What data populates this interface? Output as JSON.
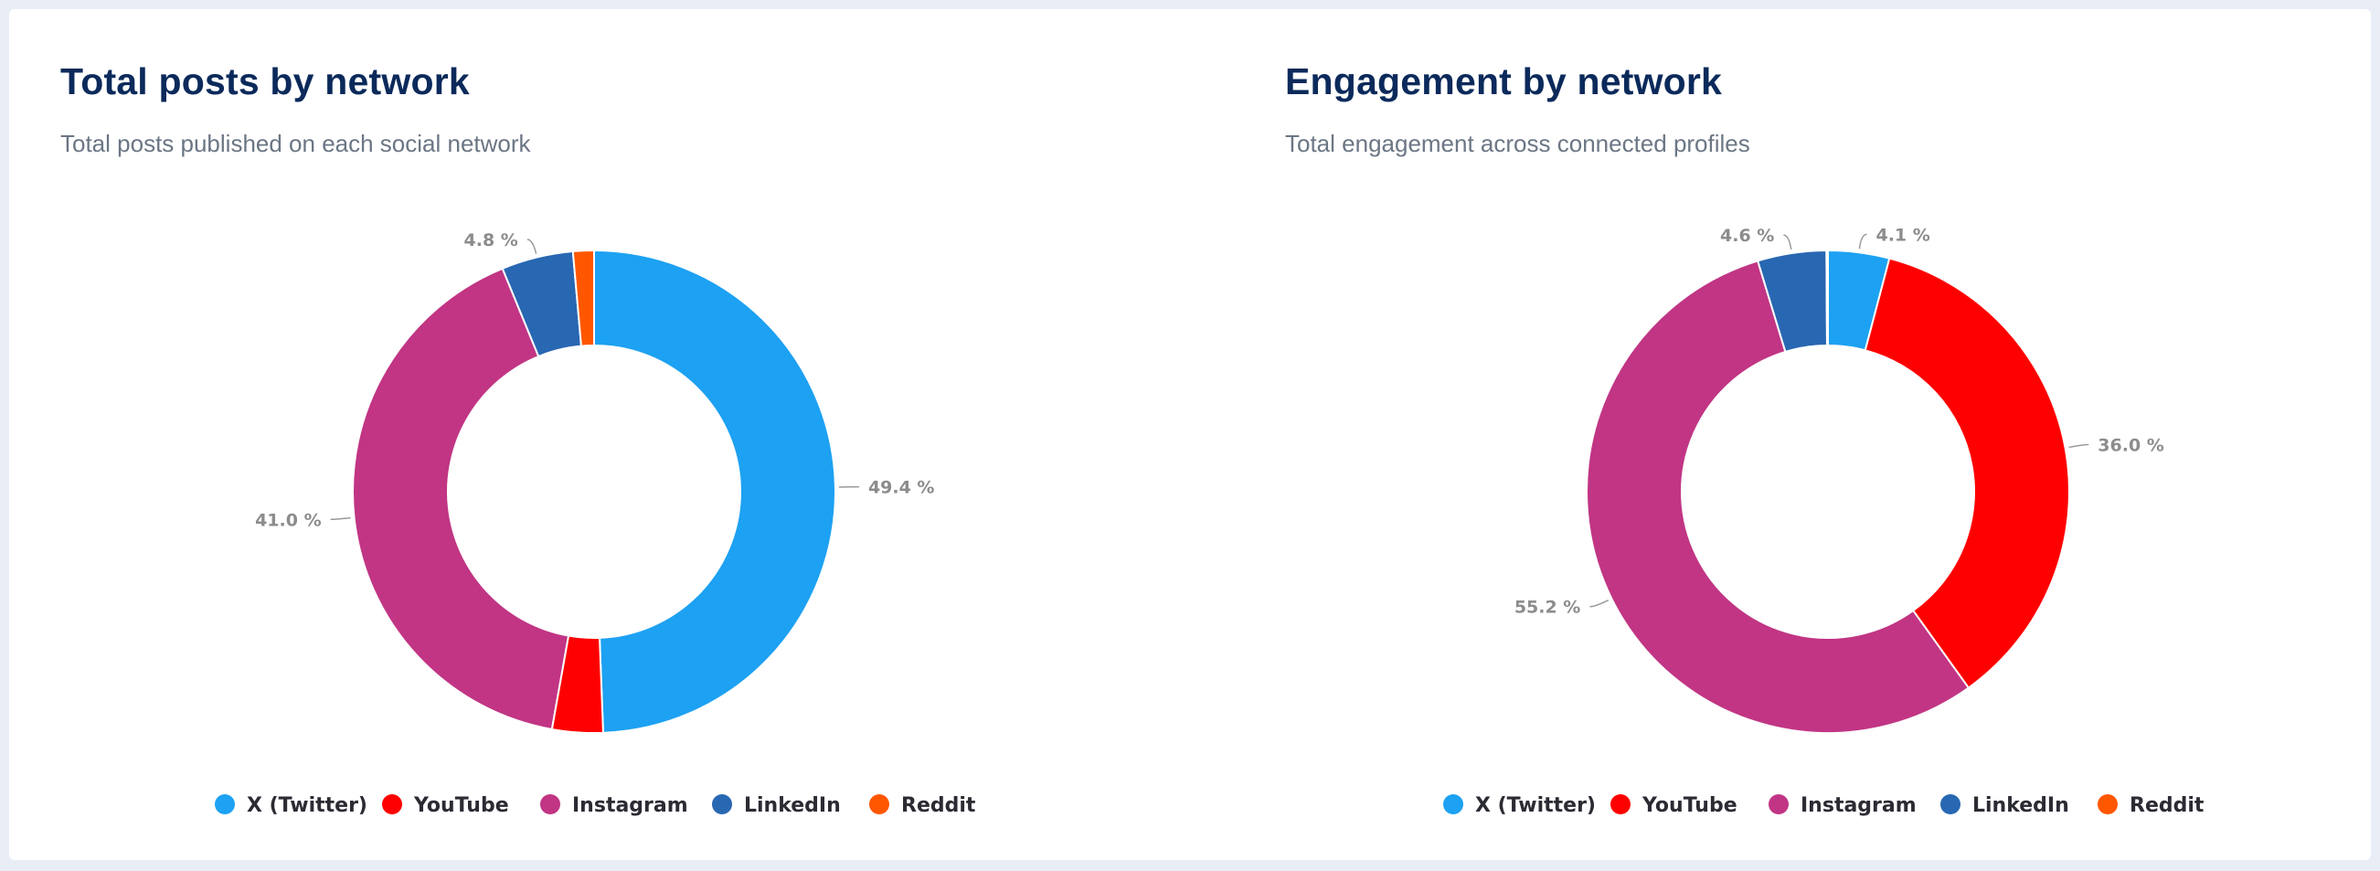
{
  "charts": [
    {
      "title": "Total posts by network",
      "subtitle": "Total posts published on each social network"
    },
    {
      "title": "Engagement by network",
      "subtitle": "Total engagement across connected profiles"
    }
  ],
  "chart_data": [
    {
      "type": "pie",
      "donut": true,
      "title": "Total posts by network",
      "subtitle": "Total posts published on each social network",
      "unit": "%",
      "legend": "bottom",
      "categories": [
        "X (Twitter)",
        "YouTube",
        "Instagram",
        "LinkedIn",
        "Reddit"
      ],
      "values": [
        49.4,
        3.4,
        41.0,
        4.8,
        1.4
      ],
      "data_labels": [
        "49.4 %",
        null,
        "41.0 %",
        "4.8 %",
        null
      ],
      "colors": [
        "#1da1f2",
        "#ff0000",
        "#c13584",
        "#2867b2",
        "#ff5700"
      ]
    },
    {
      "type": "pie",
      "donut": true,
      "title": "Engagement by network",
      "subtitle": "Total engagement across connected profiles",
      "unit": "%",
      "legend": "bottom",
      "categories": [
        "X (Twitter)",
        "YouTube",
        "Instagram",
        "LinkedIn",
        "Reddit"
      ],
      "values": [
        4.1,
        36.0,
        55.2,
        4.6,
        0.1
      ],
      "data_labels": [
        "4.1 %",
        "36.0 %",
        "55.2 %",
        "4.6 %",
        null
      ],
      "colors": [
        "#1da1f2",
        "#ff0000",
        "#c13584",
        "#2867b2",
        "#ff5700"
      ]
    }
  ]
}
